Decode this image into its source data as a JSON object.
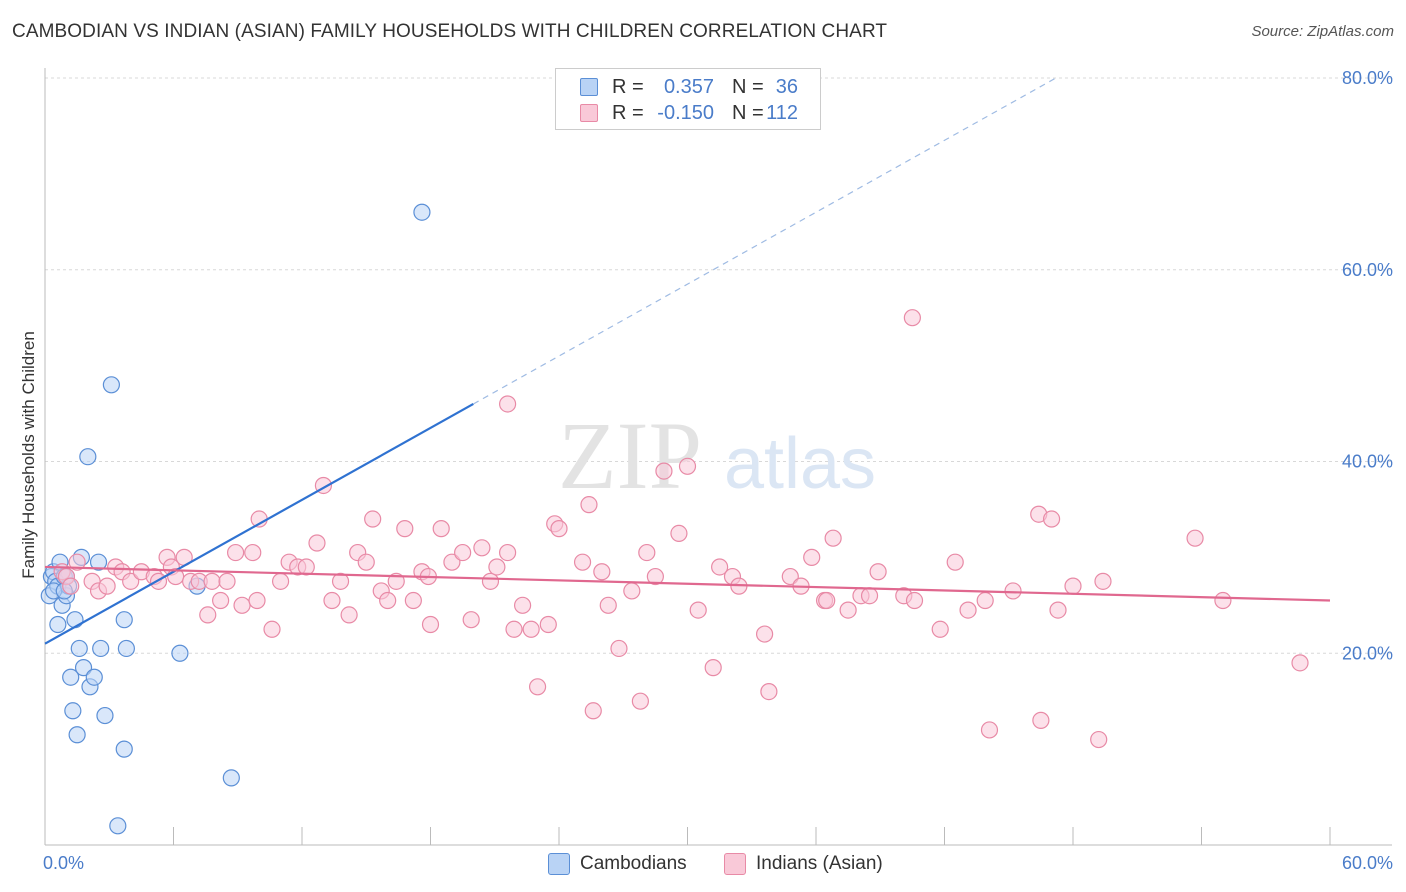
{
  "title": "CAMBODIAN VS INDIAN (ASIAN) FAMILY HOUSEHOLDS WITH CHILDREN CORRELATION CHART",
  "source": "Source: ZipAtlas.com",
  "watermark": {
    "zip": "ZIP",
    "atlas": "atlas"
  },
  "colors": {
    "blue": "#5b8fd6",
    "blue_fill": "#b9d3f5",
    "blue_line": "#2f72d1",
    "pink": "#e88aa6",
    "pink_fill": "#f9c9d8",
    "pink_line": "#e0688f",
    "axis_label": "#4a7cc9",
    "grid": "#d8d8d8"
  },
  "stats": [
    {
      "r_label": "R =",
      "r_value": "0.357",
      "n_label": "N =",
      "n_value": "36"
    },
    {
      "r_label": "R =",
      "r_value": "-0.150",
      "n_label": "N =",
      "n_value": "112"
    }
  ],
  "legend": [
    {
      "label": "Cambodians"
    },
    {
      "label": "Indians (Asian)"
    }
  ],
  "chart_data": {
    "type": "scatter",
    "title": "CAMBODIAN VS INDIAN (ASIAN) FAMILY HOUSEHOLDS WITH CHILDREN CORRELATION CHART",
    "xlabel": "",
    "ylabel": "Family Households with Children",
    "xlim": [
      0,
      60
    ],
    "ylim": [
      0,
      80
    ],
    "x_tick_labels": [
      {
        "value": 0,
        "label": "0.0%"
      },
      {
        "value": 60,
        "label": "60.0%"
      }
    ],
    "y_tick_labels": [
      {
        "value": 20,
        "label": "20.0%"
      },
      {
        "value": 40,
        "label": "40.0%"
      },
      {
        "value": 60,
        "label": "60.0%"
      },
      {
        "value": 80,
        "label": "80.0%"
      }
    ],
    "grid": true,
    "series": [
      {
        "name": "Cambodians",
        "R": 0.357,
        "N": 36,
        "trendline": {
          "x0": 0,
          "y0": 21.0,
          "x1": 20.0,
          "y1": 46.0,
          "dashed_to_x": 47.2,
          "dashed_to_y": 80.0
        },
        "points": [
          [
            0.2,
            26.0
          ],
          [
            0.3,
            28.0
          ],
          [
            0.4,
            28.5
          ],
          [
            0.5,
            27.5
          ],
          [
            0.6,
            27.0
          ],
          [
            0.6,
            23.0
          ],
          [
            0.7,
            29.5
          ],
          [
            0.8,
            25.0
          ],
          [
            0.9,
            28.0
          ],
          [
            1.0,
            26.0
          ],
          [
            1.1,
            27.0
          ],
          [
            1.2,
            17.5
          ],
          [
            1.3,
            14.0
          ],
          [
            1.4,
            23.5
          ],
          [
            1.5,
            11.5
          ],
          [
            1.6,
            20.5
          ],
          [
            1.7,
            30.0
          ],
          [
            1.8,
            18.5
          ],
          [
            2.0,
            40.5
          ],
          [
            2.1,
            16.5
          ],
          [
            2.3,
            17.5
          ],
          [
            2.5,
            29.5
          ],
          [
            2.6,
            20.5
          ],
          [
            2.8,
            13.5
          ],
          [
            3.1,
            48.0
          ],
          [
            3.7,
            23.5
          ],
          [
            3.8,
            20.5
          ],
          [
            3.7,
            10.0
          ],
          [
            3.4,
            2.0
          ],
          [
            6.3,
            20.0
          ],
          [
            7.1,
            27.0
          ],
          [
            8.7,
            7.0
          ],
          [
            17.6,
            66.0
          ],
          [
            0.4,
            26.5
          ],
          [
            1.0,
            28.0
          ],
          [
            0.9,
            26.5
          ]
        ]
      },
      {
        "name": "Indians (Asian)",
        "R": -0.15,
        "N": 112,
        "trendline": {
          "x0": 0,
          "y0": 29.0,
          "x1": 60,
          "y1": 25.5
        },
        "points": [
          [
            0.8,
            28.5
          ],
          [
            1.0,
            28.0
          ],
          [
            1.2,
            27.0
          ],
          [
            1.5,
            29.5
          ],
          [
            2.2,
            27.5
          ],
          [
            2.5,
            26.5
          ],
          [
            2.9,
            27.0
          ],
          [
            3.3,
            29.0
          ],
          [
            3.6,
            28.5
          ],
          [
            4.0,
            27.5
          ],
          [
            4.5,
            28.5
          ],
          [
            5.1,
            28.0
          ],
          [
            5.3,
            27.5
          ],
          [
            5.7,
            30.0
          ],
          [
            5.9,
            29.0
          ],
          [
            6.1,
            28.0
          ],
          [
            6.5,
            30.0
          ],
          [
            6.8,
            27.5
          ],
          [
            7.2,
            27.5
          ],
          [
            7.6,
            24.0
          ],
          [
            7.8,
            27.5
          ],
          [
            8.2,
            25.5
          ],
          [
            8.5,
            27.5
          ],
          [
            8.9,
            30.5
          ],
          [
            9.2,
            25.0
          ],
          [
            9.7,
            30.5
          ],
          [
            10.0,
            34.0
          ],
          [
            10.6,
            22.5
          ],
          [
            11.0,
            27.5
          ],
          [
            11.4,
            29.5
          ],
          [
            11.8,
            29.0
          ],
          [
            12.2,
            29.0
          ],
          [
            12.7,
            31.5
          ],
          [
            13.0,
            37.5
          ],
          [
            13.4,
            25.5
          ],
          [
            13.8,
            27.5
          ],
          [
            14.2,
            24.0
          ],
          [
            14.6,
            30.5
          ],
          [
            15.0,
            29.5
          ],
          [
            15.3,
            34.0
          ],
          [
            15.7,
            26.5
          ],
          [
            16.0,
            25.5
          ],
          [
            16.4,
            27.5
          ],
          [
            16.8,
            33.0
          ],
          [
            17.2,
            25.5
          ],
          [
            17.6,
            28.5
          ],
          [
            17.9,
            28.0
          ],
          [
            18.5,
            33.0
          ],
          [
            18.0,
            23.0
          ],
          [
            19.0,
            29.5
          ],
          [
            19.5,
            30.5
          ],
          [
            19.9,
            23.5
          ],
          [
            20.4,
            31.0
          ],
          [
            20.8,
            27.5
          ],
          [
            21.1,
            29.0
          ],
          [
            21.6,
            30.5
          ],
          [
            21.9,
            22.5
          ],
          [
            22.3,
            25.0
          ],
          [
            22.7,
            22.5
          ],
          [
            23.0,
            16.5
          ],
          [
            23.5,
            23.0
          ],
          [
            23.8,
            33.5
          ],
          [
            24.0,
            33.0
          ],
          [
            25.1,
            29.5
          ],
          [
            25.4,
            35.5
          ],
          [
            25.6,
            14.0
          ],
          [
            26.0,
            28.5
          ],
          [
            26.3,
            25.0
          ],
          [
            26.8,
            20.5
          ],
          [
            27.4,
            26.5
          ],
          [
            27.8,
            15.0
          ],
          [
            28.1,
            30.5
          ],
          [
            28.5,
            28.0
          ],
          [
            28.9,
            39.0
          ],
          [
            29.6,
            32.5
          ],
          [
            30.0,
            39.5
          ],
          [
            30.5,
            24.5
          ],
          [
            31.2,
            18.5
          ],
          [
            31.5,
            29.0
          ],
          [
            32.1,
            28.0
          ],
          [
            32.4,
            27.0
          ],
          [
            33.6,
            22.0
          ],
          [
            33.8,
            16.0
          ],
          [
            34.8,
            28.0
          ],
          [
            35.3,
            27.0
          ],
          [
            35.8,
            30.0
          ],
          [
            36.4,
            25.5
          ],
          [
            36.8,
            32.0
          ],
          [
            37.5,
            24.5
          ],
          [
            38.1,
            26.0
          ],
          [
            38.5,
            26.0
          ],
          [
            38.9,
            28.5
          ],
          [
            40.1,
            26.0
          ],
          [
            40.6,
            25.5
          ],
          [
            40.5,
            55.0
          ],
          [
            41.8,
            22.5
          ],
          [
            42.5,
            29.5
          ],
          [
            43.1,
            24.5
          ],
          [
            43.9,
            25.5
          ],
          [
            44.1,
            12.0
          ],
          [
            45.2,
            26.5
          ],
          [
            46.4,
            34.5
          ],
          [
            46.5,
            13.0
          ],
          [
            47.0,
            34.0
          ],
          [
            47.3,
            24.5
          ],
          [
            48.0,
            27.0
          ],
          [
            49.2,
            11.0
          ],
          [
            49.4,
            27.5
          ],
          [
            53.7,
            32.0
          ],
          [
            55.0,
            25.5
          ],
          [
            58.6,
            19.0
          ],
          [
            21.6,
            46.0
          ],
          [
            9.9,
            25.5
          ],
          [
            36.5,
            25.5
          ]
        ]
      }
    ]
  }
}
